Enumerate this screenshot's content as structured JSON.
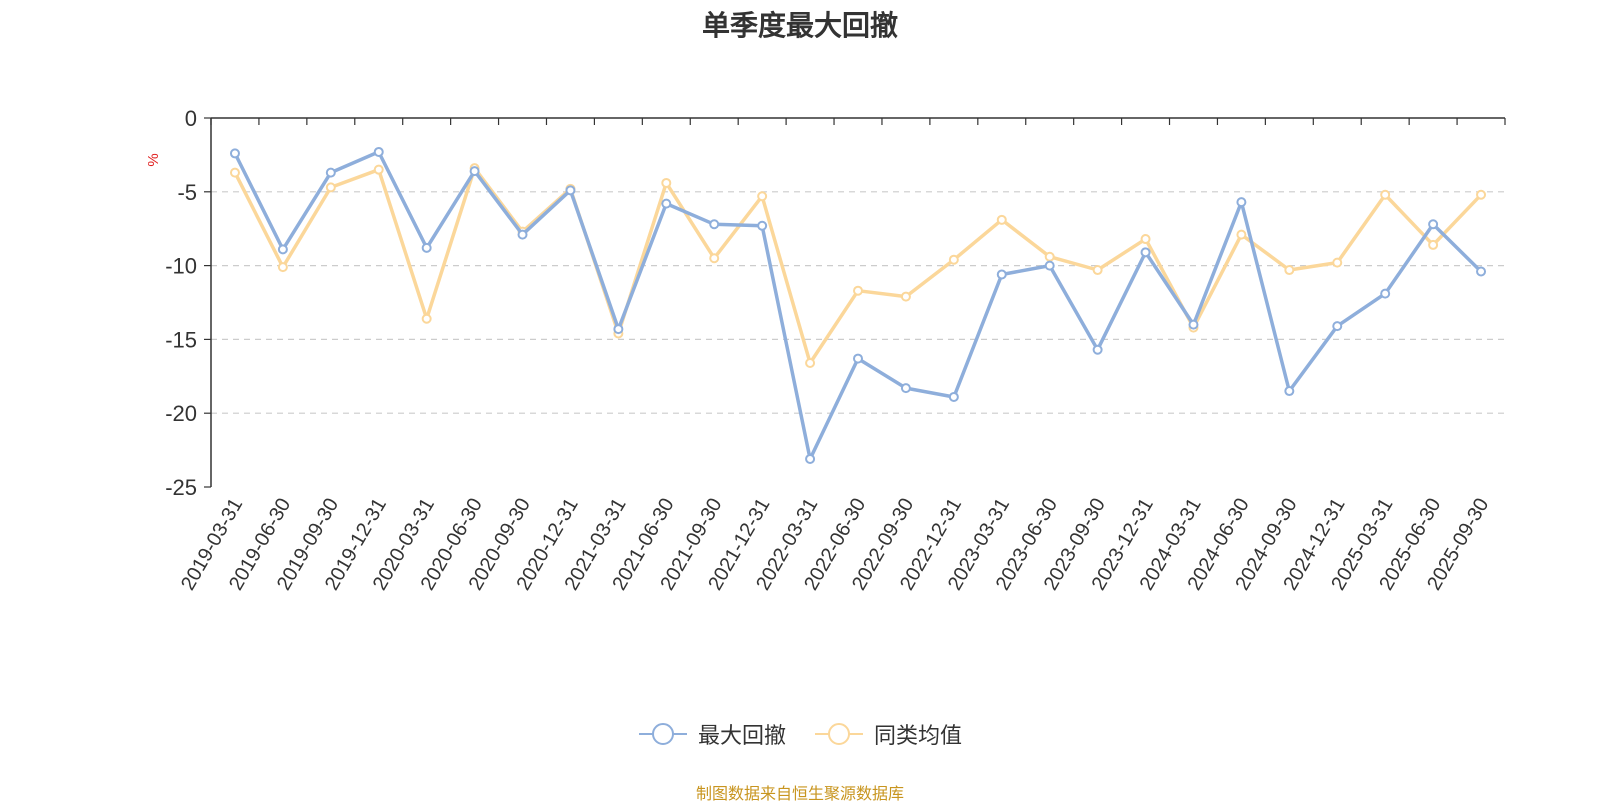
{
  "chart_data": {
    "type": "line",
    "title": "单季度最大回撤",
    "ylabel": "%",
    "ylim": [
      -25,
      0
    ],
    "yticks": [
      0,
      -5,
      -10,
      -15,
      -20,
      -25
    ],
    "grid": true,
    "legend_position": "bottom",
    "categories": [
      "2019-03-31",
      "2019-06-30",
      "2019-09-30",
      "2019-12-31",
      "2020-03-31",
      "2020-06-30",
      "2020-09-30",
      "2020-12-31",
      "2021-03-31",
      "2021-06-30",
      "2021-09-30",
      "2021-12-31",
      "2022-03-31",
      "2022-06-30",
      "2022-09-30",
      "2022-12-31",
      "2023-03-31",
      "2023-06-30",
      "2023-09-30",
      "2023-12-31",
      "2024-03-31",
      "2024-06-30",
      "2024-09-30",
      "2024-12-31",
      "2025-03-31",
      "2025-06-30",
      "2025-09-30"
    ],
    "series": [
      {
        "name": "最大回撤",
        "color": "#8eaedb",
        "values": [
          -2.4,
          -8.9,
          -3.7,
          -2.3,
          -8.8,
          -3.6,
          -7.9,
          -4.9,
          -14.3,
          -5.8,
          -7.2,
          -7.3,
          -23.1,
          -16.3,
          -18.3,
          -18.9,
          -10.6,
          -10.0,
          -15.7,
          -9.1,
          -14.0,
          -5.7,
          -18.5,
          -14.1,
          -11.9,
          -7.2,
          -10.4
        ]
      },
      {
        "name": "同类均值",
        "color": "#fbd79a",
        "values": [
          -3.7,
          -10.1,
          -4.7,
          -3.5,
          -13.6,
          -3.4,
          -7.7,
          -4.8,
          -14.6,
          -4.4,
          -9.5,
          -5.3,
          -16.6,
          -11.7,
          -12.1,
          -9.6,
          -6.9,
          -9.4,
          -10.3,
          -8.2,
          -14.2,
          -7.9,
          -10.3,
          -9.8,
          -5.2,
          -8.6,
          -5.2
        ]
      }
    ]
  },
  "source_note": "制图数据来自恒生聚源数据库"
}
